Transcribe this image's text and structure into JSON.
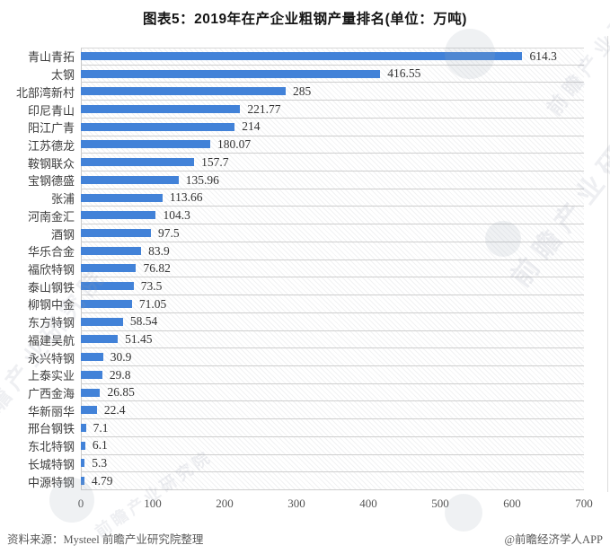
{
  "title": "图表5：2019年在产企业粗钢产量排名(单位：万吨)",
  "footer": {
    "source": "资料来源：Mysteel 前瞻产业研究院整理",
    "credit": "@前瞻经济学人APP"
  },
  "watermark": {
    "text": "前瞻产业研究院"
  },
  "colors": {
    "bar": "#4282d8",
    "grid": "#cfcfcf",
    "axis_line": "#c9c9c9",
    "label_text": "#3d3d3d",
    "value_text": "#333333",
    "axis_text": "#555555",
    "footer_text": "#595959"
  },
  "chart_data": {
    "type": "bar",
    "orientation": "horizontal",
    "title": "图表5：2019年在产企业粗钢产量排名(单位：万吨)",
    "unit": "万吨",
    "categories": [
      "青山青拓",
      "太钢",
      "北部湾新村",
      "印尼青山",
      "阳江广青",
      "江苏德龙",
      "鞍钢联众",
      "宝钢德盛",
      "张浦",
      "河南金汇",
      "酒钢",
      "华乐合金",
      "福欣特钢",
      "泰山钢铁",
      "柳钢中金",
      "东方特钢",
      "福建吴航",
      "永兴特钢",
      "上泰实业",
      "广西金海",
      "华新丽华",
      "邢台钢铁",
      "东北特钢",
      "长城特钢",
      "中源特钢"
    ],
    "values": [
      614.3,
      416.55,
      285,
      221.77,
      214,
      180.07,
      157.7,
      135.96,
      113.66,
      104.3,
      97.5,
      83.9,
      76.82,
      73.5,
      71.05,
      58.54,
      51.45,
      30.9,
      29.8,
      26.85,
      22.4,
      7.1,
      6.1,
      5.3,
      4.79
    ],
    "xlim": [
      0,
      700
    ],
    "x_ticks": [
      0,
      100,
      200,
      300,
      400,
      500,
      600,
      700
    ],
    "value_labels": true,
    "grid": "horizontal-row-separators",
    "legend": "none"
  }
}
